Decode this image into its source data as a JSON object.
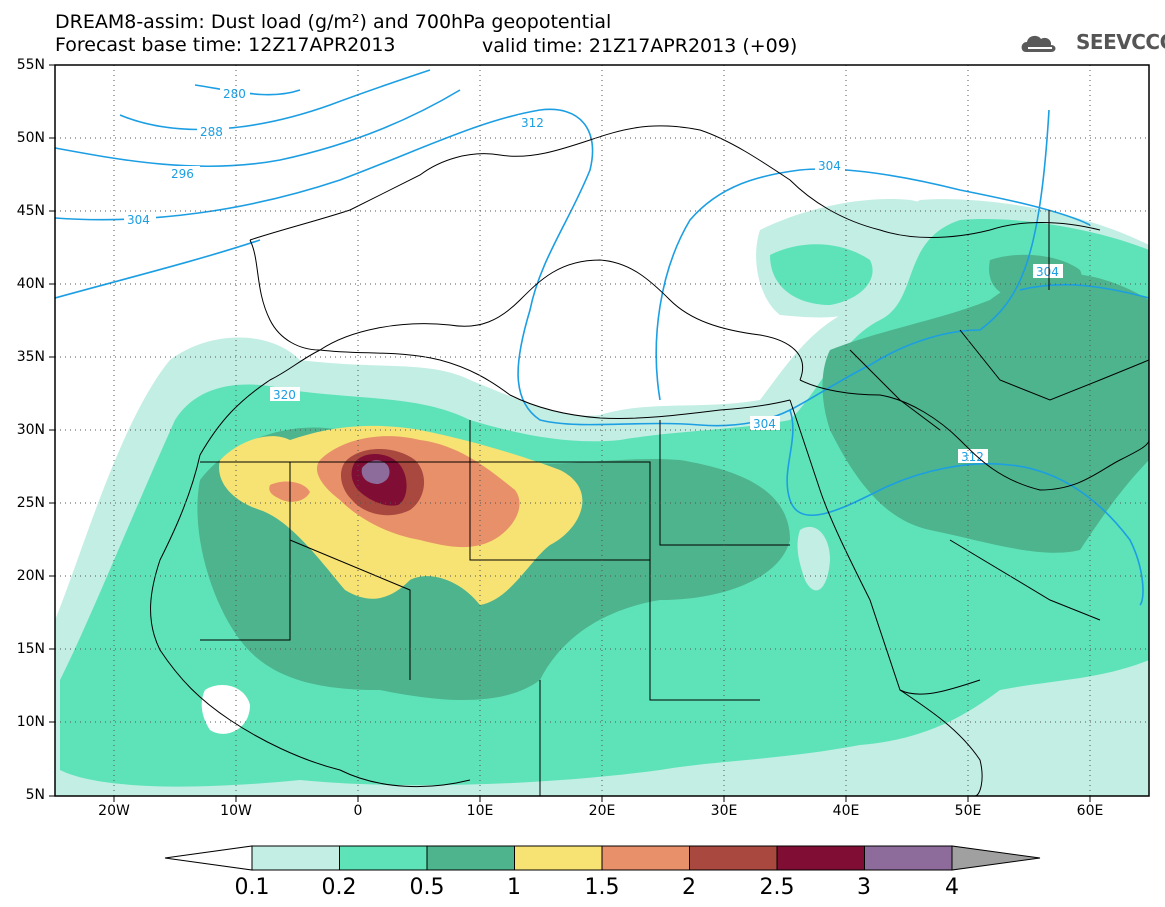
{
  "title": {
    "line1": "DREAM8-assim: Dust load (g/m²) and 700hPa geopotential",
    "line2": "Forecast base time: 12Z17APR2013",
    "valid": "valid time: 21Z17APR2013 (+09)"
  },
  "logo": {
    "text": "SEEVCCC",
    "icon": "cloud-logo-icon"
  },
  "axes": {
    "lat_labels": [
      "55N",
      "50N",
      "45N",
      "40N",
      "35N",
      "30N",
      "25N",
      "20N",
      "15N",
      "10N",
      "5N"
    ],
    "lon_labels": [
      "20W",
      "10W",
      "0",
      "10E",
      "20E",
      "30E",
      "40E",
      "50E",
      "60E"
    ]
  },
  "contour_labels": [
    "280",
    "288",
    "296",
    "304",
    "312",
    "304",
    "304",
    "304",
    "320",
    "304",
    "312"
  ],
  "colorbar": {
    "labels": [
      "0.1",
      "0.2",
      "0.5",
      "1",
      "1.5",
      "2",
      "2.5",
      "3",
      "4"
    ],
    "colors": [
      "#c3eee4",
      "#5ee3b8",
      "#4db48e",
      "#f7e374",
      "#e8906a",
      "#a9483e",
      "#800d34",
      "#8d6b9a"
    ],
    "under_color": "#ffffff",
    "over_color": "#a0a0a0"
  },
  "colors": {
    "contour_line": "#1c9ee3",
    "coastline": "#000000"
  }
}
